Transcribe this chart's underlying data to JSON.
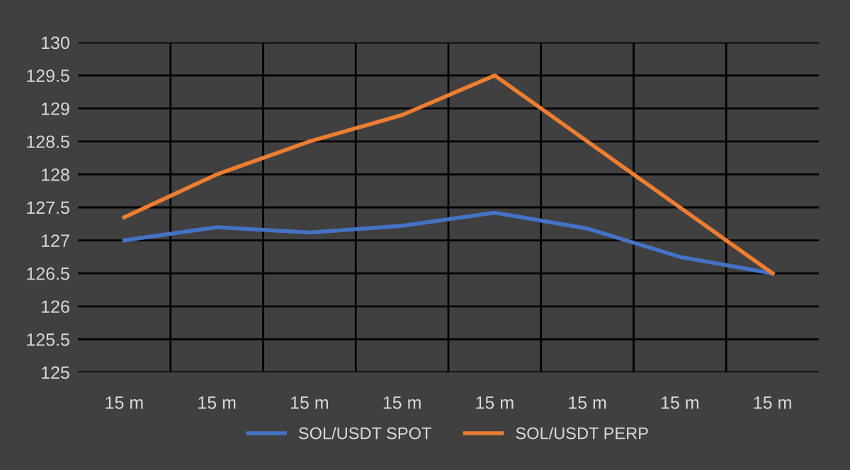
{
  "chart_data": {
    "type": "line",
    "categories": [
      "15 m",
      "15 m",
      "15 m",
      "15 m",
      "15 m",
      "15 m",
      "15 m",
      "15 m"
    ],
    "series": [
      {
        "name": "SOL/USDT SPOT",
        "color": "#4472c4",
        "values": [
          127.0,
          127.2,
          127.12,
          127.22,
          127.42,
          127.18,
          126.75,
          126.5
        ]
      },
      {
        "name": "SOL/USDT PERP",
        "color": "#ed7d31",
        "values": [
          127.35,
          128.0,
          128.5,
          128.9,
          129.5,
          128.5,
          127.5,
          126.5
        ]
      }
    ],
    "ylim": [
      125,
      130
    ],
    "yticks": [
      125,
      {
        "value": 125.5,
        "label": "125.5"
      },
      126,
      {
        "value": 126.5,
        "label": "126.5"
      },
      127,
      {
        "value": 127.5,
        "label": "127.5"
      },
      128,
      {
        "value": 128.5,
        "label": "128.5"
      },
      129,
      {
        "value": 129.5,
        "label": "129.5"
      },
      130
    ],
    "grid": true,
    "legend": "bottom",
    "marker": "none",
    "line_style": "solid"
  }
}
